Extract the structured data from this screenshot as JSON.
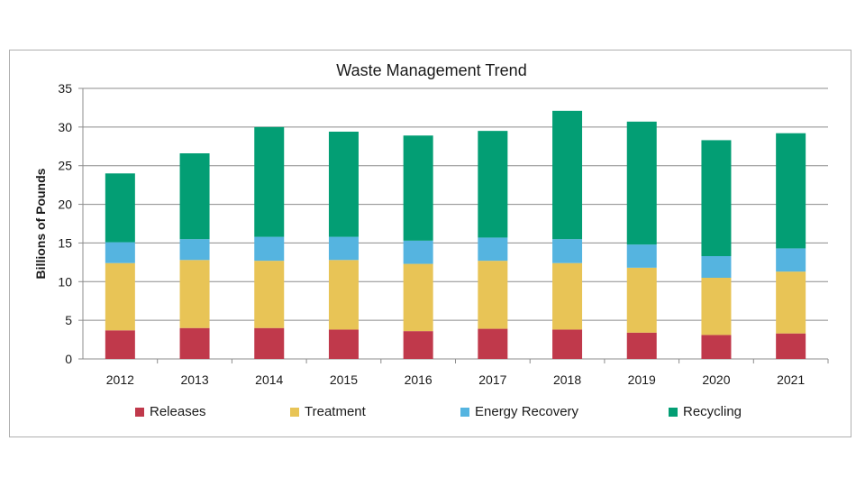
{
  "chart_data": {
    "type": "bar",
    "stacked": true,
    "title": "Waste Management Trend",
    "xlabel": "",
    "ylabel": "Billions of Pounds",
    "ylim": [
      0,
      35
    ],
    "yticks": [
      0,
      5,
      10,
      15,
      20,
      25,
      30,
      35
    ],
    "grid": true,
    "legend_position": "bottom",
    "categories": [
      "2012",
      "2013",
      "2014",
      "2015",
      "2016",
      "2017",
      "2018",
      "2019",
      "2020",
      "2021"
    ],
    "series": [
      {
        "name": "Releases",
        "color": "#c0394b",
        "values": [
          3.7,
          4.0,
          4.0,
          3.8,
          3.6,
          3.9,
          3.8,
          3.4,
          3.1,
          3.3
        ]
      },
      {
        "name": "Treatment",
        "color": "#e8c456",
        "values": [
          8.7,
          8.8,
          8.7,
          9.0,
          8.7,
          8.8,
          8.6,
          8.4,
          7.4,
          8.0
        ]
      },
      {
        "name": "Energy Recovery",
        "color": "#55b4e0",
        "values": [
          2.7,
          2.7,
          3.1,
          3.0,
          3.0,
          3.0,
          3.1,
          3.0,
          2.8,
          3.0
        ]
      },
      {
        "name": "Recycling",
        "color": "#039e74",
        "values": [
          8.9,
          11.1,
          14.2,
          13.6,
          13.6,
          13.8,
          16.6,
          15.9,
          15.0,
          14.9
        ]
      }
    ]
  }
}
